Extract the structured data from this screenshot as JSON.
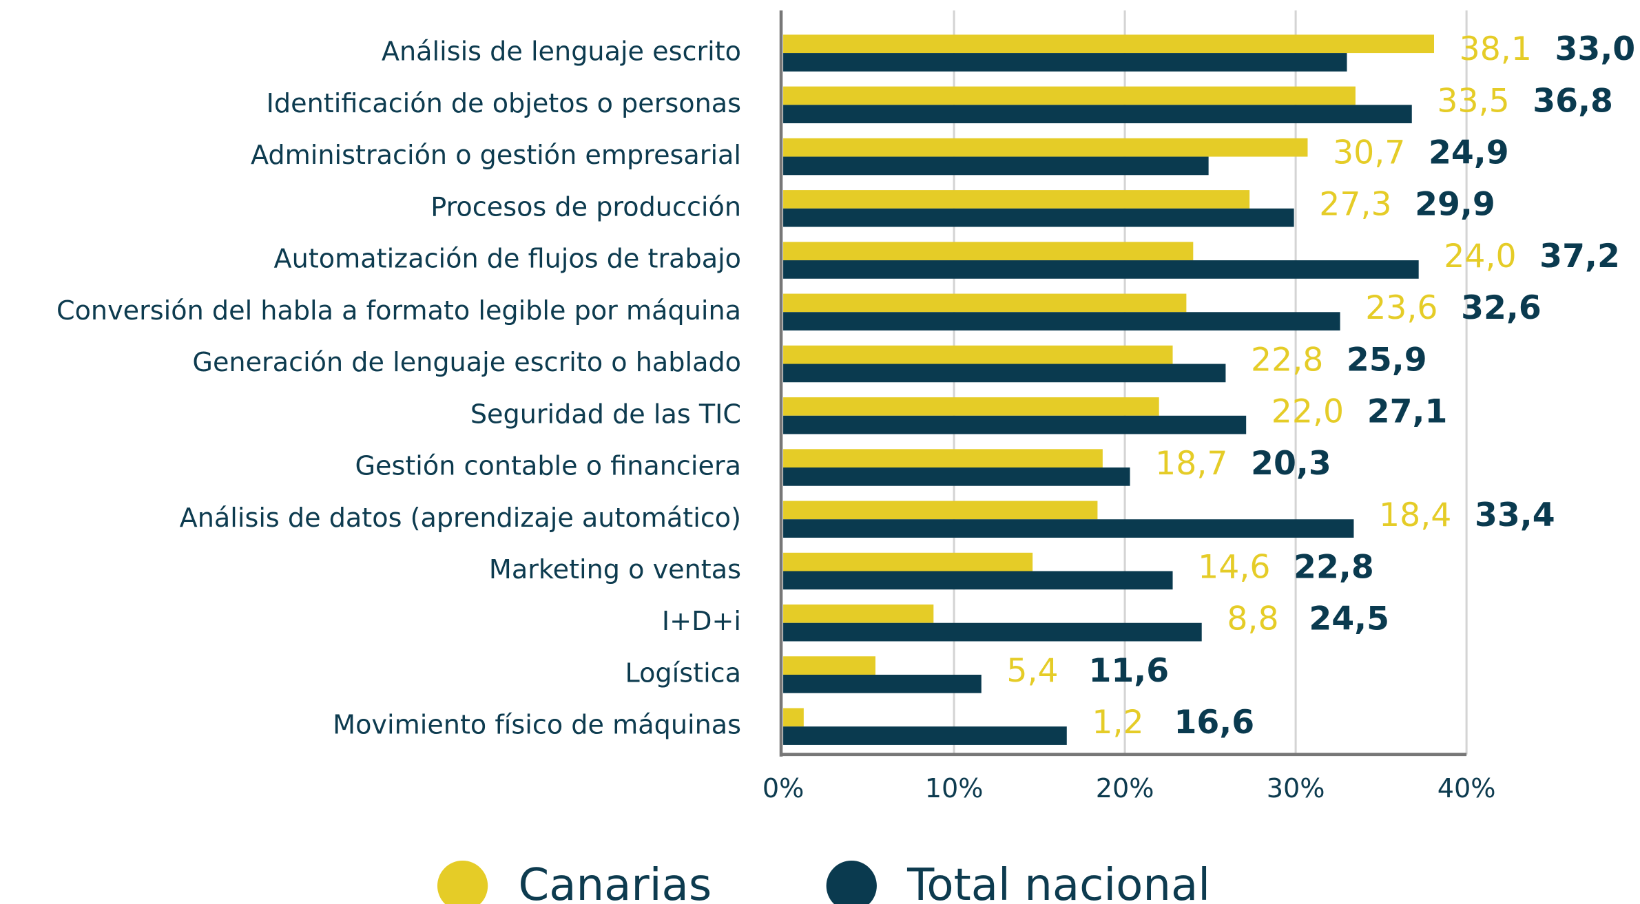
{
  "chart_data": {
    "type": "bar",
    "orientation": "horizontal",
    "categories": [
      "Análisis de lenguaje escrito",
      "Identificación de objetos o personas",
      "Administración o gestión empresarial",
      "Procesos de producción",
      "Automatización de flujos de trabajo",
      "Conversión del habla a formato legible por máquina",
      "Generación de lenguaje escrito o hablado",
      "Seguridad de las TIC",
      "Gestión contable o financiera",
      "Análisis de datos (aprendizaje automático)",
      "Marketing o ventas",
      "I+D+i",
      "Logística",
      "Movimiento físico de máquinas"
    ],
    "series": [
      {
        "name": "Canarias",
        "color": "#e5cc27",
        "values": [
          38.1,
          33.5,
          30.7,
          27.3,
          24.0,
          23.6,
          22.8,
          22.0,
          18.7,
          18.4,
          14.6,
          8.8,
          5.4,
          1.2
        ],
        "value_labels": [
          "38,1",
          "33,5",
          "30,7",
          "27,3",
          "24,0",
          "23,6",
          "22,8",
          "22,0",
          "18,7",
          "18,4",
          "14,6",
          "8,8",
          "5,4",
          "1,2"
        ]
      },
      {
        "name": "Total nacional",
        "color": "#0a3a4f",
        "values": [
          33.0,
          36.8,
          24.9,
          29.9,
          37.2,
          32.6,
          25.9,
          27.1,
          20.3,
          33.4,
          22.8,
          24.5,
          11.6,
          16.6
        ],
        "value_labels": [
          "33,0",
          "36,8",
          "24,9",
          "29,9",
          "37,2",
          "32,6",
          "25,9",
          "27,1",
          "20,3",
          "33,4",
          "22,8",
          "24,5",
          "11,6",
          "16,6"
        ]
      }
    ],
    "xlim": [
      0,
      40
    ],
    "xticks": [
      {
        "value": 0,
        "label": "0%"
      },
      {
        "value": 10,
        "label": "10%"
      },
      {
        "value": 20,
        "label": "20%"
      },
      {
        "value": 30,
        "label": "30%"
      },
      {
        "value": 40,
        "label": "40%"
      }
    ],
    "grid": true,
    "legend": "bottom"
  }
}
